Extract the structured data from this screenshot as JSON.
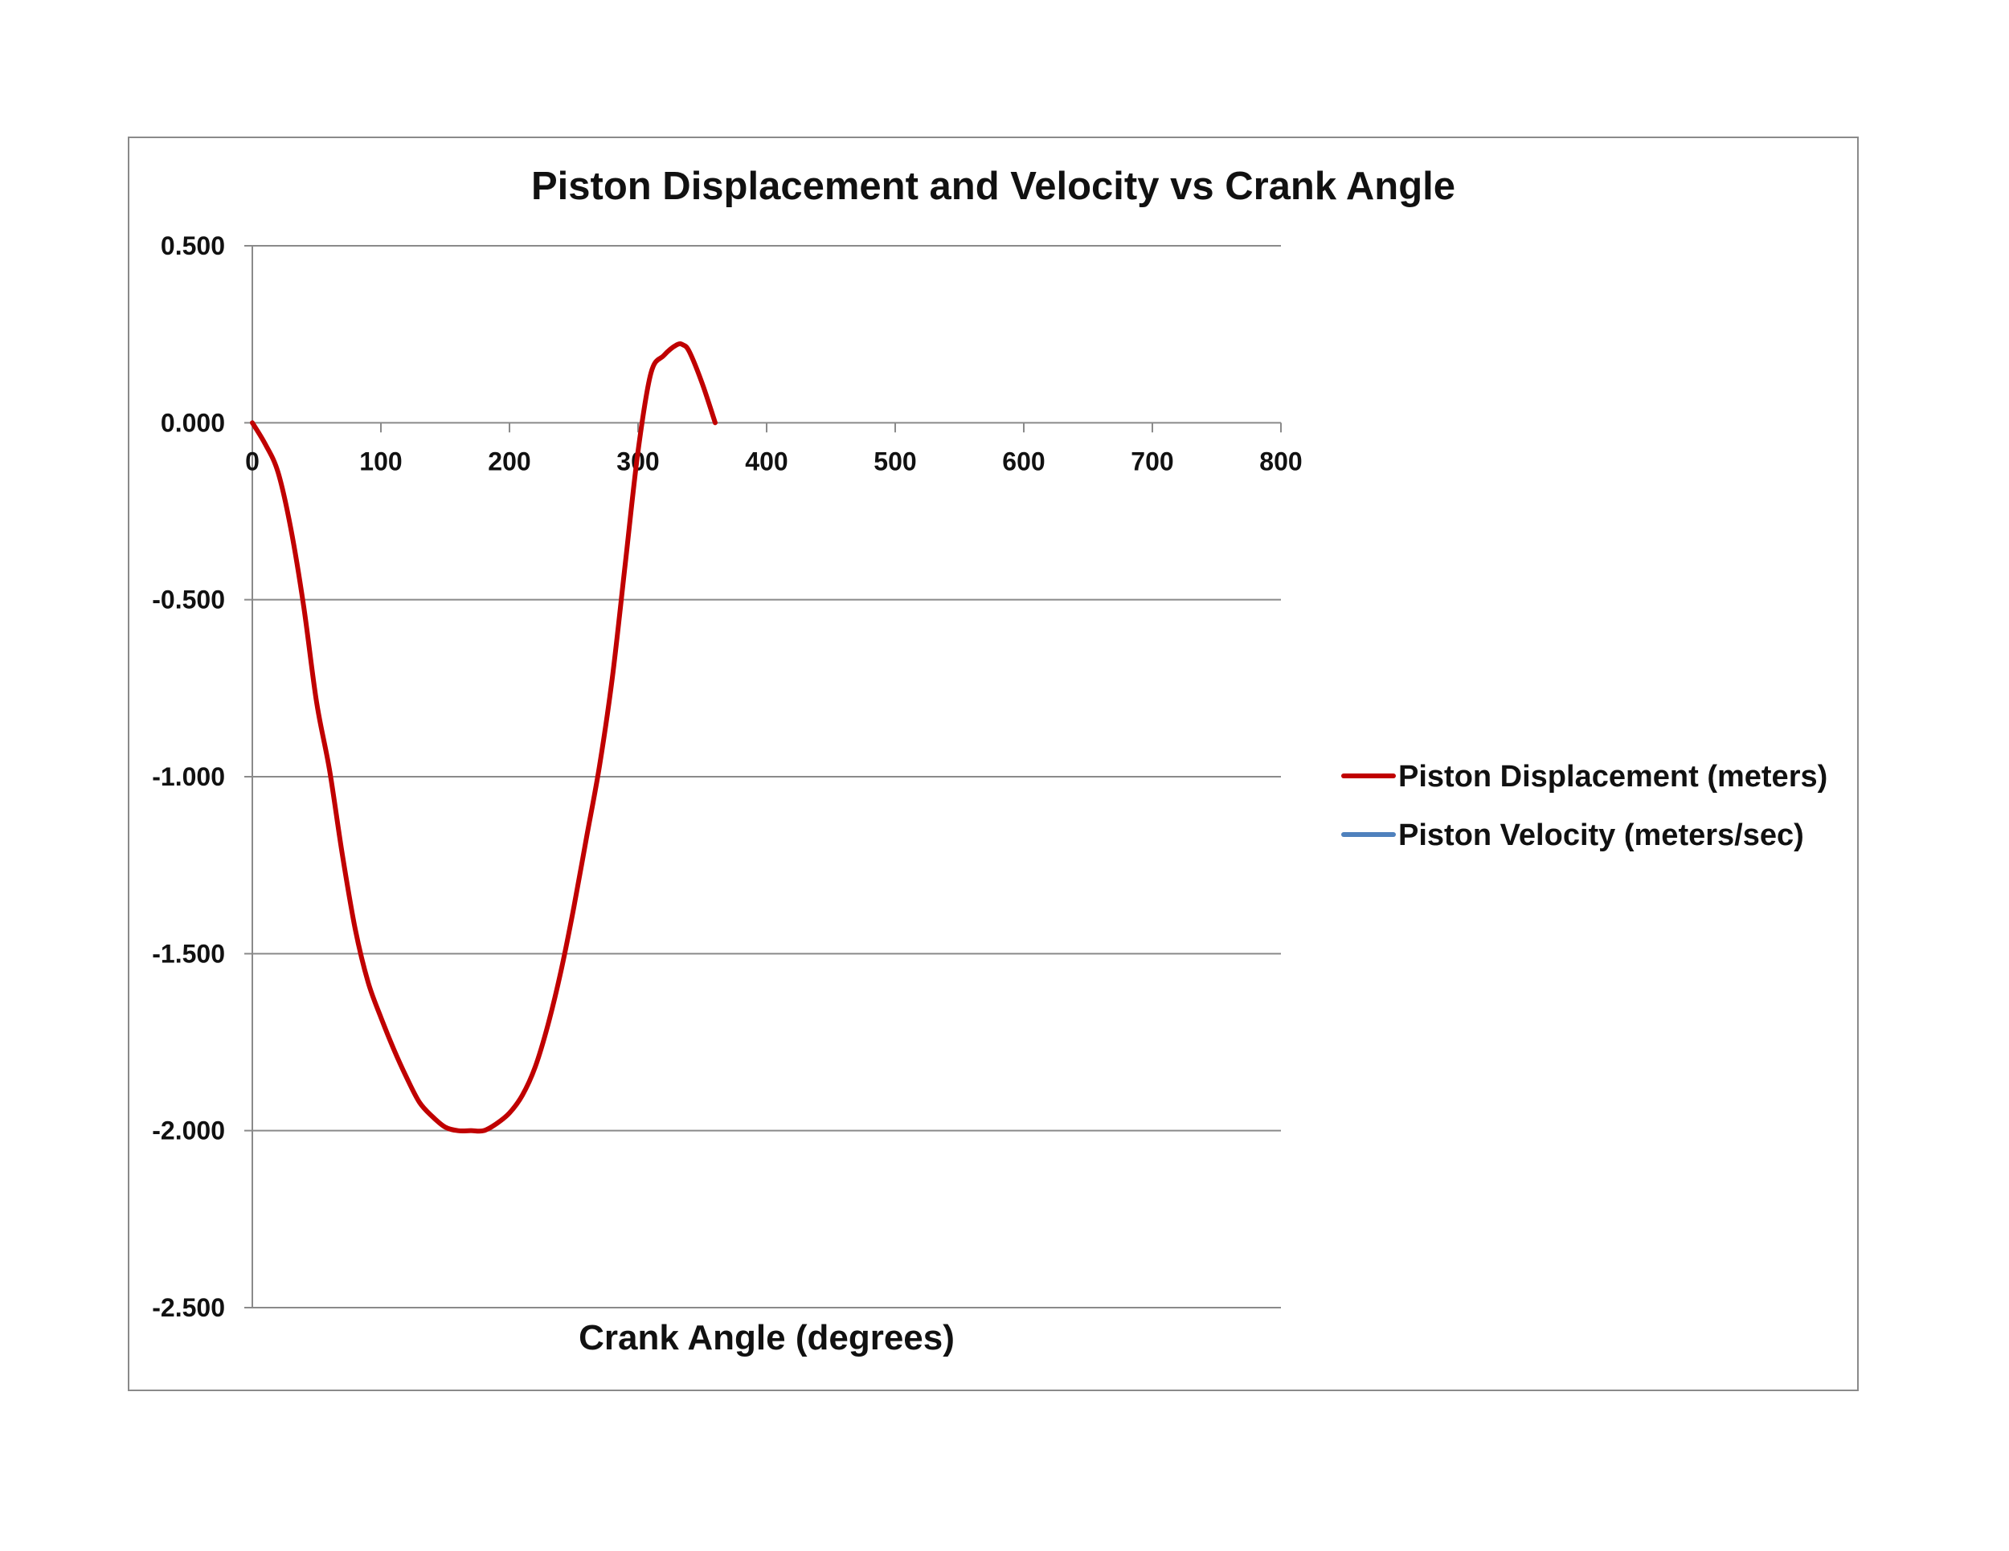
{
  "chart_data": {
    "type": "line",
    "title": "Piston Displacement and Velocity vs Crank Angle",
    "xlabel": "Crank Angle (degrees)",
    "ylabel": "",
    "xlim": [
      0,
      800
    ],
    "ylim": [
      -2.5,
      0.5
    ],
    "x_ticks": [
      0,
      100,
      200,
      300,
      400,
      500,
      600,
      700,
      800
    ],
    "y_ticks": [
      0.5,
      0.0,
      -0.5,
      -1.0,
      -1.5,
      -2.0,
      -2.5
    ],
    "y_tick_labels": [
      "0.500",
      "0.000",
      "-0.500",
      "-1.000",
      "-1.500",
      "-2.000",
      "-2.500"
    ],
    "x_tick_labels": [
      "0",
      "100",
      "200",
      "300",
      "400",
      "500",
      "600",
      "700",
      "800"
    ],
    "grid": true,
    "legend_position": "right",
    "series": [
      {
        "name": "Piston Displacement (meters)",
        "color": "#C00000",
        "x": [
          0,
          10,
          20,
          30,
          40,
          50,
          60,
          70,
          80,
          90,
          100,
          110,
          120,
          130,
          140,
          150,
          160,
          170,
          180,
          190,
          200,
          210,
          220,
          230,
          240,
          250,
          260,
          270,
          280,
          290,
          300,
          310,
          320,
          330,
          335,
          340,
          350,
          360
        ],
        "y": [
          0.0,
          -0.06,
          -0.14,
          -0.3,
          -0.52,
          -0.79,
          -0.98,
          -1.22,
          -1.43,
          -1.58,
          -1.68,
          -1.77,
          -1.85,
          -1.92,
          -1.96,
          -1.99,
          -2.0,
          -2.0,
          -2.0,
          -1.98,
          -1.95,
          -1.9,
          -1.82,
          -1.7,
          -1.55,
          -1.37,
          -1.17,
          -0.97,
          -0.72,
          -0.4,
          -0.08,
          0.14,
          0.19,
          0.22,
          0.22,
          0.2,
          0.11,
          0.0
        ]
      },
      {
        "name": "Piston Velocity (meters/sec)",
        "color": "#4F81BD",
        "x": [],
        "y": []
      }
    ]
  }
}
